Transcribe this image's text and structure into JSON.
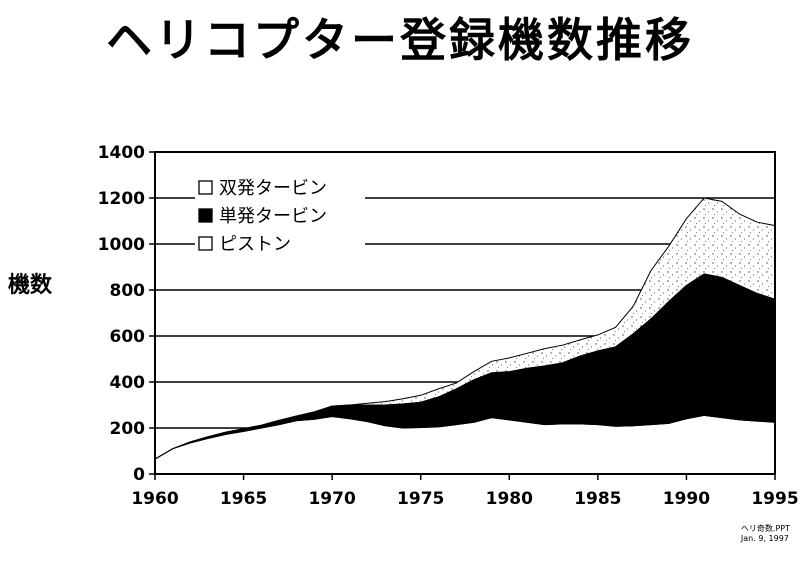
{
  "title": "ヘリコプター登録機数推移",
  "footnote": {
    "file": "ヘリ奇数.PPT",
    "date": "Jan. 9, 1997"
  },
  "colors": {
    "twin_fill": "#ffffff",
    "single_fill": "#000000",
    "piston_fill": "#ffffff"
  },
  "chart_data": {
    "type": "area",
    "stacked": true,
    "title": "ヘリコプター登録機数推移",
    "xlabel": "",
    "ylabel": "機数",
    "xlim": [
      1960,
      1995
    ],
    "ylim": [
      0,
      1400
    ],
    "xticks": [
      1960,
      1965,
      1970,
      1975,
      1980,
      1985,
      1990,
      1995
    ],
    "yticks": [
      0,
      200,
      400,
      600,
      800,
      1000,
      1200,
      1400
    ],
    "grid": true,
    "legend_position": "top-left",
    "x": [
      1960,
      1961,
      1962,
      1963,
      1964,
      1965,
      1966,
      1967,
      1968,
      1969,
      1970,
      1971,
      1972,
      1973,
      1974,
      1975,
      1976,
      1977,
      1978,
      1979,
      1980,
      1981,
      1982,
      1983,
      1984,
      1985,
      1986,
      1987,
      1988,
      1989,
      1990,
      1991,
      1992,
      1993,
      1994,
      1995
    ],
    "series": [
      {
        "name": "ピストン",
        "pattern": "white",
        "values": [
          65,
          110,
          135,
          155,
          172,
          185,
          200,
          215,
          232,
          238,
          250,
          240,
          228,
          210,
          200,
          202,
          205,
          215,
          225,
          245,
          235,
          225,
          215,
          218,
          218,
          215,
          208,
          210,
          215,
          220,
          240,
          255,
          245,
          235,
          230,
          225
        ]
      },
      {
        "name": "単発タービン",
        "pattern": "black",
        "values": [
          0,
          0,
          5,
          7,
          10,
          12,
          12,
          18,
          20,
          32,
          45,
          60,
          72,
          90,
          105,
          110,
          130,
          155,
          185,
          195,
          210,
          235,
          255,
          265,
          295,
          320,
          345,
          400,
          460,
          530,
          580,
          615,
          610,
          585,
          555,
          535
        ]
      },
      {
        "name": "双発タービン",
        "pattern": "white-dotted",
        "values": [
          0,
          0,
          0,
          0,
          0,
          0,
          0,
          0,
          0,
          0,
          0,
          0,
          8,
          15,
          22,
          30,
          35,
          25,
          35,
          50,
          60,
          65,
          75,
          77,
          70,
          70,
          85,
          120,
          210,
          240,
          290,
          330,
          330,
          310,
          310,
          320
        ]
      }
    ]
  }
}
